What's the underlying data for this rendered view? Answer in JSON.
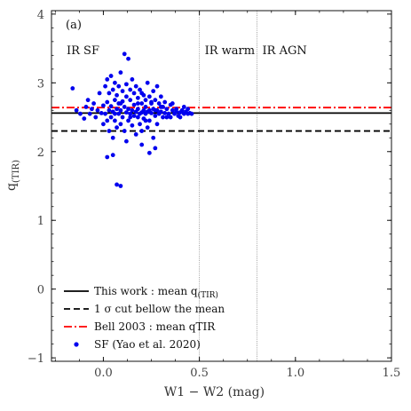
{
  "chart_data": {
    "type": "scatter",
    "panel_label": "(a)",
    "xlabel": "W1 − W2 (mag)",
    "ylabel": "q",
    "ylabel_sub": "(TIR)",
    "xlim": [
      -0.27,
      1.5
    ],
    "ylim": [
      -1.05,
      4.05
    ],
    "x_ticks": [
      0.0,
      0.5,
      1.0,
      1.5
    ],
    "x_tick_labels": [
      "0.0",
      "0.5",
      "1.0",
      "1.5"
    ],
    "y_ticks": [
      -1,
      0,
      1,
      2,
      3,
      4
    ],
    "y_tick_labels": [
      "−1",
      "0",
      "1",
      "2",
      "3",
      "4"
    ],
    "grid": false,
    "regions": [
      {
        "label": "IR SF",
        "x_start": -0.27
      },
      {
        "label": "IR warm",
        "x_start": 0.5
      },
      {
        "label": "IR AGN",
        "x_start": 0.8
      }
    ],
    "vertical_lines": [
      0.5,
      0.8
    ],
    "horizontal_lines": [
      {
        "name": "This work : mean q(TIR)",
        "y": 2.56,
        "style": "solid",
        "color": "#000000"
      },
      {
        "name": "1 σ cut bellow the mean",
        "y": 2.3,
        "style": "dashed",
        "color": "#000000"
      },
      {
        "name": "Bell 2003 : mean qTIR",
        "y": 2.64,
        "style": "dashdot",
        "color": "#ff0000"
      }
    ],
    "series": [
      {
        "name": "SF (Yao et al. 2020)",
        "color": "#0000ee",
        "points": [
          [
            -0.16,
            2.92
          ],
          [
            -0.14,
            2.6
          ],
          [
            -0.12,
            2.55
          ],
          [
            -0.1,
            2.48
          ],
          [
            -0.09,
            2.65
          ],
          [
            -0.08,
            2.75
          ],
          [
            -0.07,
            2.55
          ],
          [
            -0.06,
            2.62
          ],
          [
            -0.05,
            2.7
          ],
          [
            -0.04,
            2.5
          ],
          [
            -0.03,
            2.6
          ],
          [
            -0.02,
            2.85
          ],
          [
            -0.01,
            2.56
          ],
          [
            0.0,
            2.67
          ],
          [
            0.0,
            2.4
          ],
          [
            0.01,
            2.95
          ],
          [
            0.01,
            2.55
          ],
          [
            0.02,
            3.05
          ],
          [
            0.02,
            2.72
          ],
          [
            0.02,
            2.45
          ],
          [
            0.03,
            2.6
          ],
          [
            0.03,
            2.85
          ],
          [
            0.03,
            2.3
          ],
          [
            0.04,
            3.1
          ],
          [
            0.04,
            2.66
          ],
          [
            0.04,
            2.5
          ],
          [
            0.05,
            2.9
          ],
          [
            0.05,
            2.58
          ],
          [
            0.05,
            2.2
          ],
          [
            0.06,
            2.75
          ],
          [
            0.06,
            2.45
          ],
          [
            0.06,
            3.0
          ],
          [
            0.07,
            2.62
          ],
          [
            0.07,
            2.82
          ],
          [
            0.07,
            2.35
          ],
          [
            0.08,
            2.95
          ],
          [
            0.08,
            2.55
          ],
          [
            0.08,
            2.7
          ],
          [
            0.09,
            3.15
          ],
          [
            0.09,
            2.6
          ],
          [
            0.09,
            2.4
          ],
          [
            0.1,
            2.88
          ],
          [
            0.1,
            2.5
          ],
          [
            0.1,
            2.73
          ],
          [
            0.11,
            3.42
          ],
          [
            0.11,
            2.65
          ],
          [
            0.11,
            2.3
          ],
          [
            0.12,
            2.98
          ],
          [
            0.12,
            2.57
          ],
          [
            0.12,
            2.8
          ],
          [
            0.13,
            3.35
          ],
          [
            0.13,
            2.62
          ],
          [
            0.13,
            2.45
          ],
          [
            0.14,
            2.9
          ],
          [
            0.14,
            2.55
          ],
          [
            0.14,
            2.75
          ],
          [
            0.15,
            3.05
          ],
          [
            0.15,
            2.6
          ],
          [
            0.15,
            2.38
          ],
          [
            0.16,
            2.85
          ],
          [
            0.16,
            2.52
          ],
          [
            0.16,
            2.68
          ],
          [
            0.17,
            2.95
          ],
          [
            0.17,
            2.58
          ],
          [
            0.17,
            2.25
          ],
          [
            0.18,
            2.78
          ],
          [
            0.18,
            2.5
          ],
          [
            0.18,
            2.62
          ],
          [
            0.19,
            2.9
          ],
          [
            0.19,
            2.55
          ],
          [
            0.19,
            2.4
          ],
          [
            0.2,
            2.7
          ],
          [
            0.2,
            2.57
          ],
          [
            0.2,
            2.3
          ],
          [
            0.21,
            2.82
          ],
          [
            0.21,
            2.6
          ],
          [
            0.21,
            2.48
          ],
          [
            0.22,
            2.75
          ],
          [
            0.22,
            2.55
          ],
          [
            0.22,
            2.65
          ],
          [
            0.23,
            3.0
          ],
          [
            0.23,
            2.58
          ],
          [
            0.23,
            2.35
          ],
          [
            0.24,
            2.8
          ],
          [
            0.24,
            2.6
          ],
          [
            0.24,
            2.45
          ],
          [
            0.25,
            2.7
          ],
          [
            0.25,
            2.56
          ],
          [
            0.26,
            2.88
          ],
          [
            0.26,
            2.62
          ],
          [
            0.26,
            2.2
          ],
          [
            0.27,
            2.75
          ],
          [
            0.27,
            2.52
          ],
          [
            0.28,
            2.95
          ],
          [
            0.28,
            2.6
          ],
          [
            0.28,
            2.4
          ],
          [
            0.29,
            2.7
          ],
          [
            0.29,
            2.55
          ],
          [
            0.3,
            2.8
          ],
          [
            0.3,
            2.58
          ],
          [
            0.31,
            2.65
          ],
          [
            0.31,
            2.5
          ],
          [
            0.32,
            2.72
          ],
          [
            0.32,
            2.56
          ],
          [
            0.33,
            2.62
          ],
          [
            0.34,
            2.55
          ],
          [
            0.35,
            2.68
          ],
          [
            0.35,
            2.5
          ],
          [
            0.36,
            2.6
          ],
          [
            0.37,
            2.55
          ],
          [
            0.38,
            2.58
          ],
          [
            0.39,
            2.52
          ],
          [
            0.4,
            2.57
          ],
          [
            0.41,
            2.6
          ],
          [
            0.42,
            2.55
          ],
          [
            0.43,
            2.58
          ],
          [
            0.44,
            2.62
          ],
          [
            0.45,
            2.56
          ],
          [
            0.46,
            2.55
          ],
          [
            0.02,
            1.92
          ],
          [
            0.27,
            2.05
          ],
          [
            0.05,
            1.95
          ],
          [
            0.2,
            2.1
          ],
          [
            0.12,
            2.15
          ],
          [
            0.24,
            1.98
          ],
          [
            0.06,
            2.55
          ],
          [
            0.09,
            2.7
          ],
          [
            0.14,
            2.5
          ],
          [
            0.18,
            2.7
          ],
          [
            0.2,
            2.85
          ],
          [
            0.22,
            2.45
          ],
          [
            0.25,
            2.72
          ],
          [
            0.27,
            2.6
          ],
          [
            0.3,
            2.65
          ],
          [
            0.33,
            2.5
          ],
          [
            0.36,
            2.7
          ],
          [
            0.38,
            2.62
          ],
          [
            0.4,
            2.5
          ],
          [
            0.42,
            2.65
          ],
          [
            0.44,
            2.55
          ],
          [
            0.07,
            1.52
          ],
          [
            0.09,
            1.5
          ]
        ]
      }
    ],
    "legend": {
      "placement": "bottom-left",
      "entries": [
        {
          "label": "This work :  mean q",
          "sub": "(TIR)",
          "style": "solid",
          "color": "#000000"
        },
        {
          "label": "1 σ cut bellow the mean",
          "sub": "",
          "style": "dashed",
          "color": "#000000"
        },
        {
          "label": "Bell 2003 :  mean qTIR",
          "sub": "",
          "style": "dashdot",
          "color": "#ff0000"
        },
        {
          "label": "SF (Yao et al. 2020)",
          "sub": "",
          "style": "marker",
          "color": "#0000ee"
        }
      ]
    }
  }
}
